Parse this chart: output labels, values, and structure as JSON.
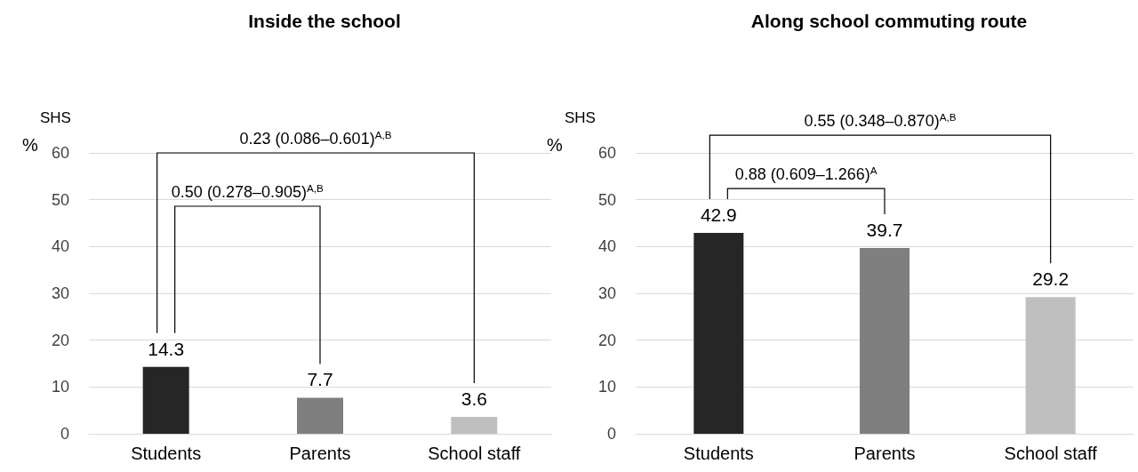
{
  "chart_data": [
    {
      "type": "bar",
      "title": "Inside the school",
      "ylabel": "SHS\n%",
      "categories": [
        "Students",
        "Parents",
        "School staff"
      ],
      "values": [
        14.3,
        7.7,
        3.6
      ],
      "colors": [
        "#262626",
        "#7f7f7f",
        "#bfbfbf"
      ],
      "ylim": [
        0,
        60
      ],
      "yticks": [
        0,
        10,
        20,
        30,
        40,
        50,
        60
      ],
      "grid": "y",
      "data_labels": true,
      "annotations": [
        "0.50 (0.278–0.905)$^{A,B}$",
        "0.23 (0.086–0.601)$^{A,B}$"
      ]
    },
    {
      "type": "bar",
      "title": "Along school commuting route",
      "ylabel": "SHS\n%",
      "categories": [
        "Students",
        "Parents",
        "School staff"
      ],
      "values": [
        42.9,
        39.7,
        29.2
      ],
      "colors": [
        "#262626",
        "#7f7f7f",
        "#bfbfbf"
      ],
      "ylim": [
        0,
        60
      ],
      "yticks": [
        0,
        10,
        20,
        30,
        40,
        50,
        60
      ],
      "grid": "y",
      "data_labels": true,
      "annotations": [
        "0.88 (0.609–1.266)$^{A}$",
        "0.55 (0.348–0.870)$^{A,B}$"
      ]
    }
  ]
}
